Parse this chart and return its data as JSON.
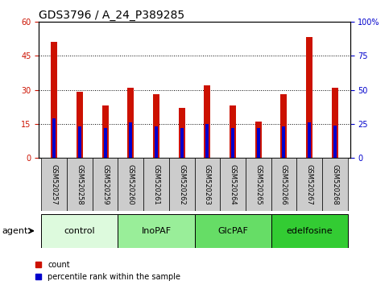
{
  "title": "GDS3796 / A_24_P389285",
  "samples": [
    "GSM520257",
    "GSM520258",
    "GSM520259",
    "GSM520260",
    "GSM520261",
    "GSM520262",
    "GSM520263",
    "GSM520264",
    "GSM520265",
    "GSM520266",
    "GSM520267",
    "GSM520268"
  ],
  "count_values": [
    51,
    29,
    23,
    31,
    28,
    22,
    32,
    23,
    16,
    28,
    53,
    31
  ],
  "percentile_values": [
    29,
    23,
    22,
    26,
    23,
    22,
    25,
    22,
    22,
    23,
    26,
    24
  ],
  "count_color": "#cc1100",
  "percentile_color": "#0000cc",
  "ylim_left": [
    0,
    60
  ],
  "ylim_right": [
    0,
    100
  ],
  "yticks_left": [
    0,
    15,
    30,
    45,
    60
  ],
  "yticks_right": [
    0,
    25,
    50,
    75,
    100
  ],
  "ytick_labels_right": [
    "0",
    "25",
    "50",
    "75",
    "100%"
  ],
  "groups": [
    {
      "label": "control",
      "start": 0,
      "end": 3,
      "color": "#ddfadd"
    },
    {
      "label": "InoPAF",
      "start": 3,
      "end": 6,
      "color": "#99ee99"
    },
    {
      "label": "GlcPAF",
      "start": 6,
      "end": 9,
      "color": "#66dd66"
    },
    {
      "label": "edelfosine",
      "start": 9,
      "end": 12,
      "color": "#33cc33"
    }
  ],
  "agent_label": "agent",
  "legend_count_label": "count",
  "legend_percentile_label": "percentile rank within the sample",
  "red_bar_width": 0.25,
  "blue_bar_width": 0.12,
  "title_fontsize": 10,
  "tick_fontsize": 7,
  "sample_fontsize": 6,
  "group_label_fontsize": 8,
  "legend_fontsize": 7,
  "agent_fontsize": 8,
  "tick_label_color_left": "#cc1100",
  "tick_label_color_right": "#0000cc",
  "sample_box_color": "#cccccc",
  "bg_color": "#ffffff"
}
